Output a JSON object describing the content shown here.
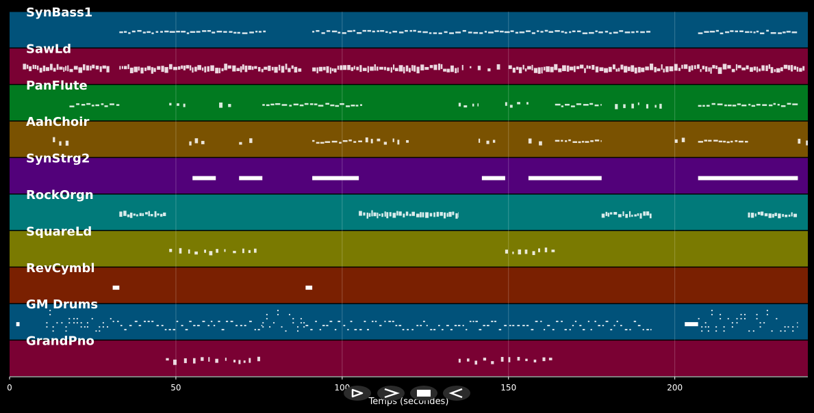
{
  "axis": {
    "xlabel": "Temps (secondes)",
    "xlim": [
      0,
      240
    ],
    "ticks": [
      0,
      50,
      100,
      150,
      200
    ]
  },
  "controls": [
    {
      "name": "play-button",
      "icon": "play-icon"
    },
    {
      "name": "fast-forward-button",
      "icon": "fast-forward-icon"
    },
    {
      "name": "stop-button",
      "icon": "stop-icon"
    },
    {
      "name": "rewind-button",
      "icon": "rewind-icon"
    }
  ],
  "tracks": [
    {
      "name": "SynBass1",
      "color": "#01527a",
      "segments": [
        [
          33,
          77,
          "dash"
        ],
        [
          91,
          193,
          "dash"
        ],
        [
          207,
          237,
          "dash"
        ]
      ]
    },
    {
      "name": "SawLd",
      "color": "#7a0133",
      "segments": [
        [
          4,
          30,
          "dense"
        ],
        [
          33,
          88,
          "dense"
        ],
        [
          91,
          135,
          "dense"
        ],
        [
          136,
          149,
          "sparse"
        ],
        [
          150,
          239,
          "dense"
        ]
      ]
    },
    {
      "name": "PanFlute",
      "color": "#017a20",
      "segments": [
        [
          18,
          33,
          "dash"
        ],
        [
          48,
          54,
          "sparse"
        ],
        [
          63,
          68,
          "sparse"
        ],
        [
          76,
          106,
          "dash"
        ],
        [
          135,
          141,
          "sparse"
        ],
        [
          149,
          156,
          "sparse"
        ],
        [
          164,
          178,
          "dash"
        ],
        [
          182,
          197,
          "sparse"
        ],
        [
          207,
          237,
          "dash"
        ]
      ]
    },
    {
      "name": "AahChoir",
      "color": "#7a5201",
      "segments": [
        [
          13,
          18,
          "sparse"
        ],
        [
          54,
          59,
          "sparse"
        ],
        [
          69,
          74,
          "sparse"
        ],
        [
          91,
          106,
          "dash"
        ],
        [
          107,
          120,
          "sparse"
        ],
        [
          141,
          146,
          "sparse"
        ],
        [
          156,
          161,
          "sparse"
        ],
        [
          164,
          178,
          "dash"
        ],
        [
          200,
          205,
          "sparse"
        ],
        [
          207,
          222,
          "dash"
        ],
        [
          237,
          240,
          "sparse"
        ]
      ]
    },
    {
      "name": "SynStrg2",
      "color": "#52017a",
      "segments": [
        [
          55,
          62,
          "block"
        ],
        [
          69,
          76,
          "block"
        ],
        [
          91,
          105,
          "block"
        ],
        [
          142,
          149,
          "block"
        ],
        [
          156,
          178,
          "block"
        ],
        [
          207,
          237,
          "block"
        ]
      ]
    },
    {
      "name": "RockOrgn",
      "color": "#017a7a",
      "segments": [
        [
          33,
          47,
          "tall"
        ],
        [
          105,
          135,
          "tall"
        ],
        [
          178,
          193,
          "tall"
        ],
        [
          222,
          237,
          "tall"
        ]
      ]
    },
    {
      "name": "SquareLd",
      "color": "#7a7a01",
      "segments": [
        [
          48,
          76,
          "sparse"
        ],
        [
          149,
          164,
          "sparse"
        ]
      ]
    },
    {
      "name": "RevCymbl",
      "color": "#7a2001",
      "segments": [
        [
          31,
          33,
          "block"
        ],
        [
          89,
          91,
          "block"
        ]
      ]
    },
    {
      "name": "GM Drums",
      "color": "#01527a",
      "segments": [
        [
          2,
          3,
          "block"
        ],
        [
          11,
          31,
          "drums"
        ],
        [
          31,
          76,
          "drumsLow"
        ],
        [
          76,
          89,
          "drums"
        ],
        [
          89,
          193,
          "drumsLow"
        ],
        [
          203,
          207,
          "block"
        ],
        [
          207,
          237,
          "drums"
        ]
      ]
    },
    {
      "name": "GrandPno",
      "color": "#7a0133",
      "segments": [
        [
          47,
          76,
          "sparse"
        ],
        [
          135,
          164,
          "sparse"
        ]
      ]
    }
  ]
}
